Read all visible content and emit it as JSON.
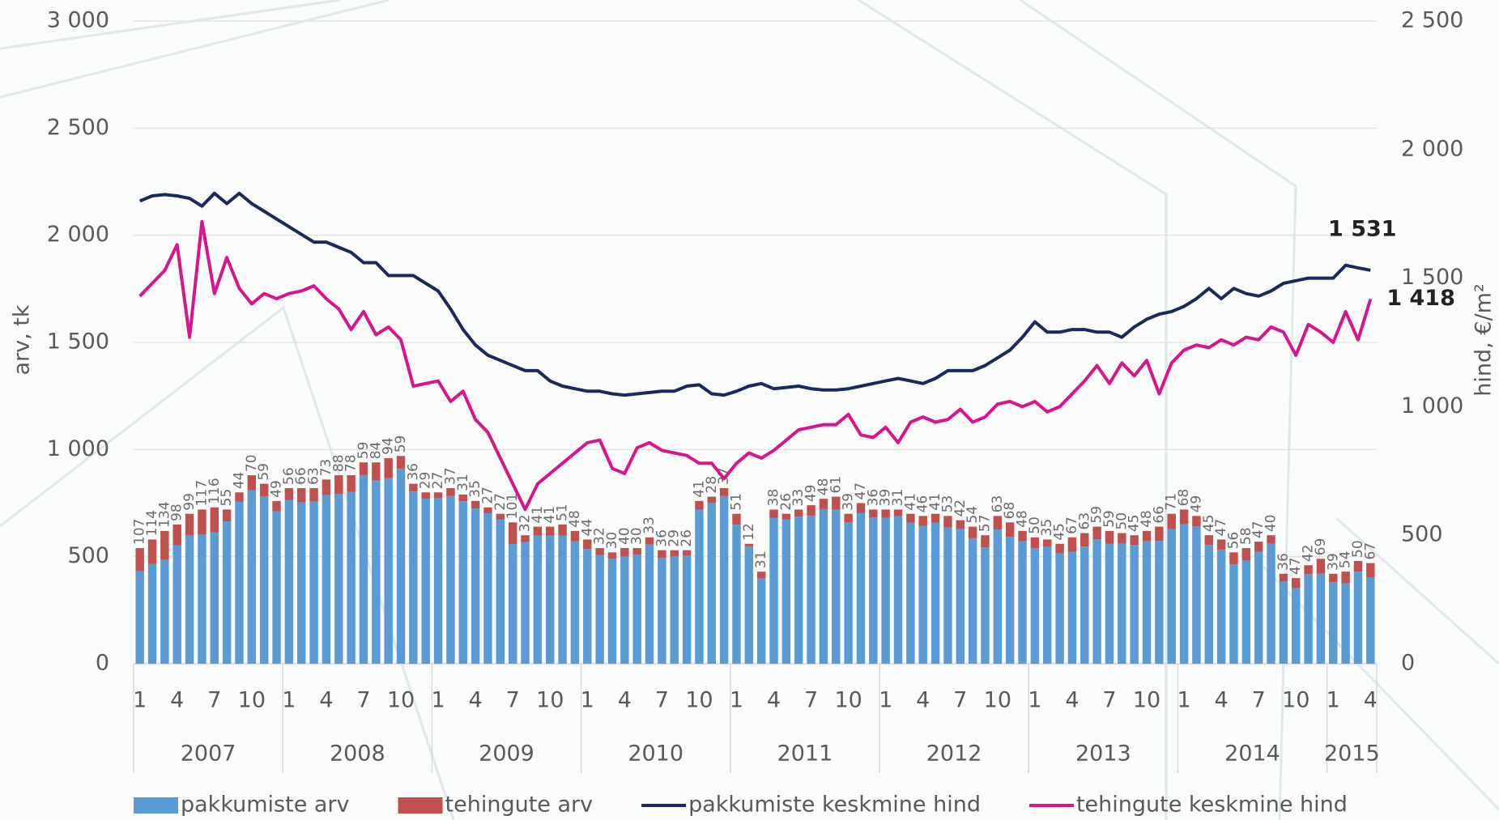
{
  "chart_data": {
    "type": "bar",
    "ylabel": "arv, tk",
    "y2label": "hind, €/m²",
    "ylim": [
      0,
      3000
    ],
    "yticks": [
      0,
      {
        "value": 500,
        "label": "500"
      },
      {
        "value": 1000,
        "label": "1 000"
      },
      {
        "value": 1500,
        "label": "1 500"
      },
      {
        "value": 2000,
        "label": "2 000"
      },
      {
        "value": 2500,
        "label": "2 500"
      },
      {
        "value": 3000,
        "label": "3 000"
      }
    ],
    "y2lim": [
      0,
      2500
    ],
    "y2ticks": [
      0,
      500,
      {
        "value": 1000,
        "label": "1 000"
      },
      {
        "value": 1500,
        "label": "1 500"
      },
      {
        "value": 2000,
        "label": "2 000"
      },
      {
        "value": 2500,
        "label": "2 500"
      }
    ],
    "grid": true,
    "legend": "bottom",
    "categories": [
      "1",
      null,
      null,
      "4",
      null,
      null,
      "7",
      null,
      null,
      "10",
      null,
      null,
      "1",
      null,
      null,
      "4",
      null,
      null,
      "7",
      null,
      null,
      "10",
      null,
      null,
      "1",
      null,
      null,
      "4",
      null,
      null,
      "7",
      null,
      null,
      "10",
      null,
      null,
      "1",
      null,
      null,
      "4",
      null,
      null,
      "7",
      null,
      null,
      "10",
      null,
      null,
      "1",
      null,
      null,
      "4",
      null,
      null,
      "7",
      null,
      null,
      "10",
      null,
      null,
      "1",
      null,
      null,
      "4",
      null,
      null,
      "7",
      null,
      null,
      "10",
      null,
      null,
      "1",
      null,
      null,
      "4",
      null,
      null,
      "7",
      null,
      null,
      "10",
      null,
      null,
      "1",
      null,
      null,
      "4",
      null,
      null,
      "7",
      null,
      null,
      "10",
      null,
      null,
      "1",
      null,
      null,
      "4"
    ],
    "years": [
      "2007",
      "2008",
      "2009",
      "2010",
      "2011",
      "2012",
      "2013",
      "2014",
      "2015"
    ],
    "series": [
      {
        "name": "pakkumiste arv",
        "type": "bar",
        "color": "#5b9bd5",
        "values": [
          433,
          466,
          486,
          552,
          601,
          603,
          614,
          665,
          756,
          810,
          781,
          711,
          764,
          754,
          757,
          787,
          792,
          802,
          881,
          856,
          866,
          911,
          804,
          771,
          773,
          783,
          759,
          725,
          703,
          673,
          559,
          568,
          599,
          599,
          599,
          572,
          536,
          508,
          490,
          500,
          510,
          557,
          494,
          501,
          504,
          719,
          752,
          783,
          649,
          548,
          399,
          682,
          674,
          687,
          691,
          722,
          719,
          661,
          703,
          684,
          681,
          689,
          659,
          644,
          659,
          637,
          628,
          586,
          543,
          627,
          592,
          572,
          540,
          545,
          515,
          523,
          547,
          581,
          561,
          560,
          555,
          572,
          574,
          629,
          652,
          641,
          555,
          533,
          464,
          482,
          523,
          560,
          384,
          353,
          418,
          421,
          381,
          376,
          430,
          403
        ]
      },
      {
        "name": "tehingute arv",
        "type": "bar",
        "color": "#c0504d",
        "values": [
          107,
          114,
          134,
          98,
          99,
          117,
          116,
          55,
          44,
          70,
          59,
          49,
          56,
          66,
          63,
          73,
          88,
          78,
          59,
          84,
          94,
          59,
          36,
          29,
          27,
          37,
          31,
          35,
          27,
          27,
          101,
          32,
          41,
          41,
          51,
          48,
          44,
          32,
          30,
          40,
          30,
          33,
          36,
          29,
          26,
          41,
          28,
          37,
          51,
          12,
          31,
          38,
          26,
          33,
          49,
          48,
          61,
          39,
          47,
          36,
          39,
          31,
          41,
          46,
          41,
          53,
          42,
          54,
          57,
          63,
          68,
          48,
          50,
          35,
          45,
          67,
          63,
          59,
          59,
          50,
          45,
          48,
          66,
          71,
          68,
          49,
          45,
          47,
          56,
          58,
          47,
          40,
          36,
          47,
          42,
          69,
          39,
          54,
          50,
          67
        ]
      },
      {
        "name": "pakkumiste keskmine hind",
        "type": "line",
        "axis": "y2",
        "color": "#1b2a5e",
        "values": [
          1800,
          1820,
          1825,
          1820,
          1810,
          1780,
          1830,
          1790,
          1830,
          1790,
          1760,
          1730,
          1700,
          1670,
          1640,
          1640,
          1620,
          1600,
          1560,
          1560,
          1510,
          1510,
          1510,
          1480,
          1450,
          1380,
          1300,
          1240,
          1200,
          1180,
          1160,
          1140,
          1140,
          1100,
          1080,
          1070,
          1060,
          1060,
          1050,
          1045,
          1050,
          1055,
          1060,
          1060,
          1080,
          1085,
          1050,
          1045,
          1060,
          1080,
          1090,
          1070,
          1075,
          1080,
          1070,
          1065,
          1065,
          1070,
          1080,
          1090,
          1100,
          1110,
          1100,
          1090,
          1110,
          1140,
          1140,
          1140,
          1160,
          1190,
          1220,
          1270,
          1330,
          1290,
          1290,
          1300,
          1300,
          1290,
          1290,
          1270,
          1310,
          1340,
          1360,
          1370,
          1390,
          1420,
          1460,
          1420,
          1460,
          1440,
          1430,
          1450,
          1480,
          1490,
          1500,
          1500,
          1500,
          1550,
          1540,
          1531
        ],
        "value_labels": [
          null,
          null,
          null,
          null,
          null,
          null,
          null,
          null,
          null,
          null,
          null,
          null,
          null,
          null,
          null,
          null,
          null,
          null,
          null,
          null,
          null,
          null,
          null,
          null,
          null,
          null,
          null,
          null,
          null,
          null,
          null,
          null,
          null,
          null,
          null,
          null,
          null,
          null,
          null,
          null,
          null,
          null,
          null,
          null,
          null,
          null,
          null,
          null,
          null,
          null,
          null,
          null,
          null,
          null,
          null,
          null,
          null,
          null,
          null,
          null,
          null,
          null,
          null,
          null,
          null,
          null,
          null,
          null,
          null,
          null,
          null,
          null,
          null,
          null,
          null,
          null,
          null,
          null,
          null,
          null,
          null,
          null,
          null,
          null,
          null,
          null,
          null,
          null,
          null,
          null,
          null,
          null,
          null,
          null,
          null,
          null,
          null,
          null,
          null,
          "1 531"
        ]
      },
      {
        "name": "tehingute keskmine hind",
        "type": "line",
        "axis": "y2",
        "color": "#d6168c",
        "values": [
          1430,
          1480,
          1530,
          1630,
          1270,
          1720,
          1440,
          1580,
          1460,
          1400,
          1440,
          1420,
          1440,
          1450,
          1470,
          1420,
          1380,
          1300,
          1370,
          1280,
          1310,
          1260,
          1080,
          1090,
          1100,
          1020,
          1060,
          950,
          900,
          800,
          700,
          600,
          700,
          740,
          780,
          820,
          860,
          870,
          760,
          740,
          840,
          860,
          830,
          820,
          810,
          780,
          780,
          720,
          780,
          820,
          800,
          830,
          870,
          910,
          920,
          930,
          930,
          970,
          890,
          880,
          920,
          860,
          940,
          960,
          940,
          950,
          990,
          940,
          960,
          1010,
          1020,
          1000,
          1020,
          980,
          1000,
          1050,
          1100,
          1160,
          1090,
          1170,
          1120,
          1180,
          1050,
          1170,
          1220,
          1240,
          1230,
          1260,
          1240,
          1270,
          1260,
          1310,
          1290,
          1200,
          1320,
          1290,
          1250,
          1370,
          1260,
          1418
        ],
        "value_labels": [
          null,
          null,
          null,
          null,
          null,
          null,
          null,
          null,
          null,
          null,
          null,
          null,
          null,
          null,
          null,
          null,
          null,
          null,
          null,
          null,
          null,
          null,
          null,
          null,
          null,
          null,
          null,
          null,
          null,
          null,
          null,
          null,
          null,
          null,
          null,
          null,
          null,
          null,
          null,
          null,
          null,
          null,
          null,
          null,
          null,
          null,
          null,
          null,
          null,
          null,
          null,
          null,
          null,
          null,
          null,
          null,
          null,
          null,
          null,
          null,
          null,
          null,
          null,
          null,
          null,
          null,
          null,
          null,
          null,
          null,
          null,
          null,
          null,
          null,
          null,
          null,
          null,
          null,
          null,
          null,
          null,
          null,
          null,
          null,
          null,
          null,
          null,
          null,
          null,
          null,
          null,
          null,
          null,
          null,
          null,
          null,
          null,
          null,
          null,
          "1 418"
        ]
      }
    ]
  }
}
